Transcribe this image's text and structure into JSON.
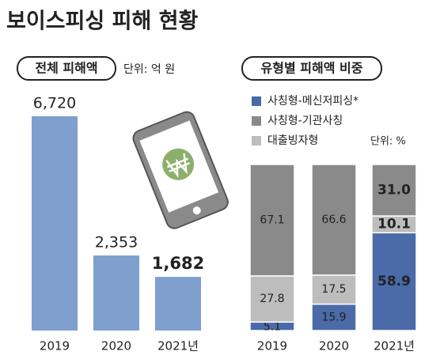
{
  "title": "보이스피싱 피해 현황",
  "chart_data": [
    {
      "type": "bar",
      "title": "전체 피해액",
      "unit": "단위: 억 원",
      "categories": [
        "2019",
        "2020",
        "2021년"
      ],
      "values": [
        6720,
        2353,
        1682
      ],
      "value_labels": [
        "6,720",
        "2,353",
        "1,682"
      ],
      "color": "#7f9fcf"
    },
    {
      "type": "stacked_bar",
      "title": "유형별 피해액 비중",
      "unit": "단위: %",
      "categories": [
        "2019",
        "2020",
        "2021년"
      ],
      "series": [
        {
          "name": "사칭형-메신저피싱*",
          "color": "#4a6aa8",
          "values": [
            5.1,
            15.9,
            58.9
          ]
        },
        {
          "name": "사칭형-기관사칭",
          "color": "#8a8a8a",
          "values": [
            67.1,
            66.6,
            31.0
          ],
          "value_labels": [
            "67.1",
            "66.6",
            "31.0"
          ]
        },
        {
          "name": "대출빙자형",
          "color": "#bdbdbd",
          "values": [
            27.8,
            17.5,
            10.1
          ]
        }
      ]
    }
  ]
}
